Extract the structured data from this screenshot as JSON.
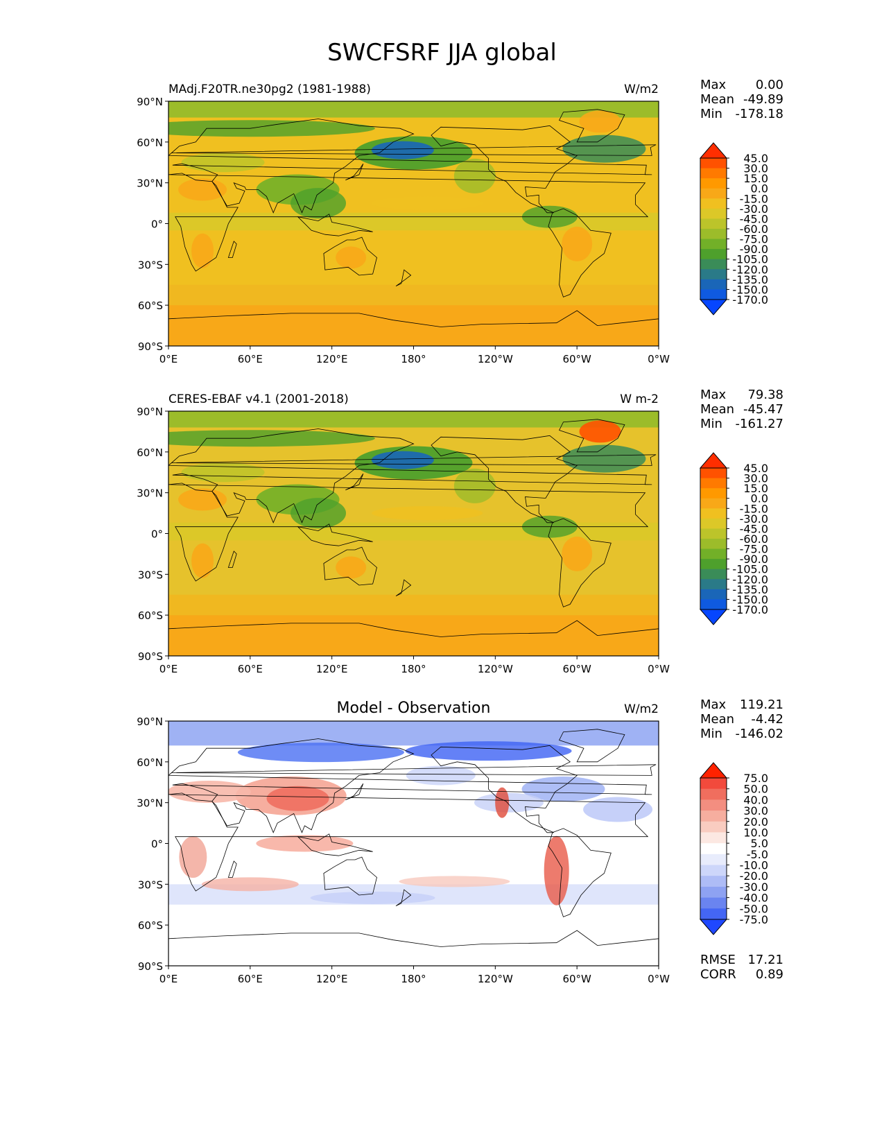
{
  "title": "SWCFSRF JJA global",
  "lat_ticks": [
    "90°N",
    "60°N",
    "30°N",
    "0°",
    "30°S",
    "60°S",
    "90°S"
  ],
  "lon_ticks": [
    "0°E",
    "60°E",
    "120°E",
    "180°",
    "120°W",
    "60°W",
    "0°W"
  ],
  "panels": [
    {
      "id": "model",
      "left_title": "MAdj.F20TR.ne30pg2 (1981-1988)",
      "center_title": "",
      "units": "W/m2",
      "stats": {
        "max": "0.00",
        "mean": "-49.89",
        "min": "-178.18"
      },
      "colorbar_labels": [
        "45.0",
        "30.0",
        "15.0",
        "0.0",
        "-15.0",
        "-30.0",
        "-45.0",
        "-60.0",
        "-75.0",
        "-90.0",
        "-105.0",
        "-120.0",
        "-135.0",
        "-150.0",
        "-170.0"
      ],
      "colorbar_colors": [
        "#ff2e00",
        "#ff5200",
        "#ff7a00",
        "#ff9900",
        "#f8a818",
        "#f0c020",
        "#dcc828",
        "#bcc42a",
        "#9cbc2a",
        "#72b028",
        "#4ea02c",
        "#3a8c58",
        "#2a7a88",
        "#1a66b8",
        "#0f5ae0",
        "#0646ff"
      ]
    },
    {
      "id": "obs",
      "left_title": "CERES-EBAF v4.1 (2001-2018)",
      "center_title": "",
      "units": "W m-2",
      "stats": {
        "max": "79.38",
        "mean": "-45.47",
        "min": "-161.27"
      },
      "colorbar_labels": [
        "45.0",
        "30.0",
        "15.0",
        "0.0",
        "-15.0",
        "-30.0",
        "-45.0",
        "-60.0",
        "-75.0",
        "-90.0",
        "-105.0",
        "-120.0",
        "-135.0",
        "-150.0",
        "-170.0"
      ],
      "colorbar_colors": [
        "#ff2e00",
        "#ff5200",
        "#ff7a00",
        "#ff9900",
        "#f8a818",
        "#f0c020",
        "#dcc828",
        "#bcc42a",
        "#9cbc2a",
        "#72b028",
        "#4ea02c",
        "#3a8c58",
        "#2a7a88",
        "#1a66b8",
        "#0f5ae0",
        "#0646ff"
      ]
    },
    {
      "id": "diff",
      "left_title": "",
      "center_title": "Model - Observation",
      "units": "W/m2",
      "stats": {
        "max": "119.21",
        "mean": "-4.42",
        "min": "-146.02"
      },
      "extra_stats": {
        "rmse_label": "RMSE",
        "rmse": "17.21",
        "corr_label": "CORR",
        "corr": "0.89"
      },
      "colorbar_labels": [
        "75.0",
        "50.0",
        "40.0",
        "30.0",
        "20.0",
        "10.0",
        "5.0",
        "-5.0",
        "-10.0",
        "-20.0",
        "-30.0",
        "-40.0",
        "-50.0",
        "-75.0"
      ],
      "colorbar_colors": [
        "#ff2200",
        "#f24a3c",
        "#f06e5e",
        "#f38e80",
        "#f6ae9f",
        "#f9ccc0",
        "#fce8e2",
        "#ffffff",
        "#e8ecfc",
        "#cdd6fa",
        "#aebcf6",
        "#8ea2f2",
        "#6a84f0",
        "#4466f4",
        "#1f48ff"
      ]
    }
  ],
  "stat_labels": {
    "max": "Max",
    "mean": "Mean",
    "min": "Min"
  },
  "colors": {
    "ocean_model": "#f0c020",
    "ocean_obs": "#e6c22c",
    "land_bright": "#f8a818",
    "diff_neutral": "#ffffff"
  }
}
